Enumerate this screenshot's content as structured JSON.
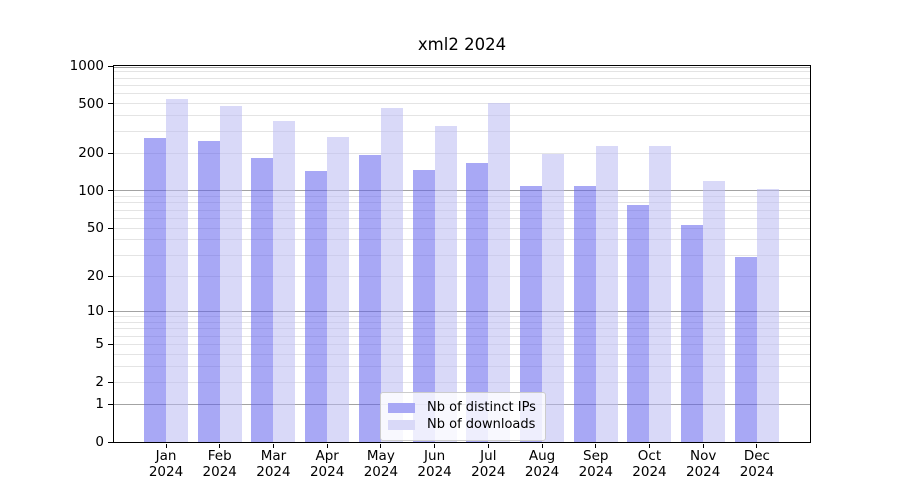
{
  "title": "xml2 2024",
  "chart_data": {
    "type": "bar",
    "title": "xml2 2024",
    "scale": "log1p",
    "ylim": [
      0,
      1000
    ],
    "y_ticks": [
      0,
      1,
      2,
      5,
      10,
      20,
      50,
      100,
      200,
      500,
      1000
    ],
    "grid": {
      "major": [
        1,
        10,
        100,
        1000
      ],
      "minor": [
        2,
        3,
        4,
        5,
        6,
        7,
        8,
        9,
        20,
        30,
        40,
        50,
        60,
        70,
        80,
        90,
        200,
        300,
        400,
        500,
        600,
        700,
        800,
        900
      ],
      "major_color": "#a3a3a3",
      "minor_color": "#e4e4e4"
    },
    "categories": [
      "Jan",
      "Feb",
      "Mar",
      "Apr",
      "May",
      "Jun",
      "Jul",
      "Aug",
      "Sep",
      "Oct",
      "Nov",
      "Dec"
    ],
    "x_sublabel": "2024",
    "series": [
      {
        "name": "Nb of distinct IPs",
        "color": "#a8a8f5",
        "fill": "rgba(97,97,237,0.55)",
        "values": [
          267,
          252,
          185,
          145,
          194,
          148,
          168,
          110,
          110,
          77,
          53,
          29
        ]
      },
      {
        "name": "Nb of downloads",
        "color": "#d9d9f8",
        "fill": "rgba(186,186,242,0.55)",
        "values": [
          545,
          478,
          366,
          273,
          462,
          332,
          507,
          198,
          228,
          228,
          119,
          104
        ]
      }
    ],
    "legend_position": "lower center"
  }
}
